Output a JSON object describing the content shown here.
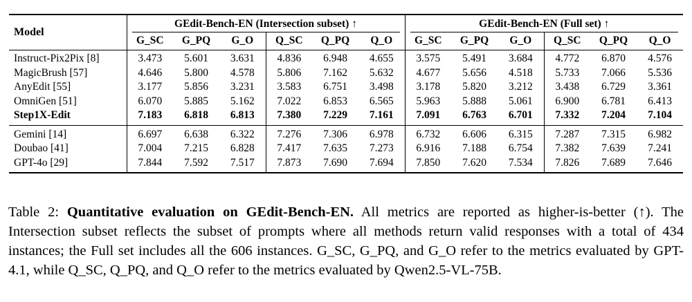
{
  "table": {
    "model_header": "Model",
    "col_groups": [
      {
        "label": "GEdit-Bench-EN (Intersection subset) ↑"
      },
      {
        "label": "GEdit-Bench-EN (Full set) ↑"
      }
    ],
    "metric_headers": [
      "G_SC",
      "G_PQ",
      "G_O",
      "Q_SC",
      "Q_PQ",
      "Q_O",
      "G_SC",
      "G_PQ",
      "G_O",
      "Q_SC",
      "Q_PQ",
      "Q_O"
    ],
    "groups": [
      {
        "rows": [
          {
            "model": "Instruct-Pix2Pix [8]",
            "bold": false,
            "values": [
              "3.473",
              "5.601",
              "3.631",
              "4.836",
              "6.948",
              "4.655",
              "3.575",
              "5.491",
              "3.684",
              "4.772",
              "6.870",
              "4.576"
            ]
          },
          {
            "model": "MagicBrush [57]",
            "bold": false,
            "values": [
              "4.646",
              "5.800",
              "4.578",
              "5.806",
              "7.162",
              "5.632",
              "4.677",
              "5.656",
              "4.518",
              "5.733",
              "7.066",
              "5.536"
            ]
          },
          {
            "model": "AnyEdit [55]",
            "bold": false,
            "values": [
              "3.177",
              "5.856",
              "3.231",
              "3.583",
              "6.751",
              "3.498",
              "3.178",
              "5.820",
              "3.212",
              "3.438",
              "6.729",
              "3.361"
            ]
          },
          {
            "model": "OmniGen [51]",
            "bold": false,
            "values": [
              "6.070",
              "5.885",
              "5.162",
              "7.022",
              "6.853",
              "6.565",
              "5.963",
              "5.888",
              "5.061",
              "6.900",
              "6.781",
              "6.413"
            ]
          },
          {
            "model": "Step1X-Edit",
            "bold": true,
            "values": [
              "7.183",
              "6.818",
              "6.813",
              "7.380",
              "7.229",
              "7.161",
              "7.091",
              "6.763",
              "6.701",
              "7.332",
              "7.204",
              "7.104"
            ]
          }
        ]
      },
      {
        "rows": [
          {
            "model": "Gemini [14]",
            "bold": false,
            "values": [
              "6.697",
              "6.638",
              "6.322",
              "7.276",
              "7.306",
              "6.978",
              "6.732",
              "6.606",
              "6.315",
              "7.287",
              "7.315",
              "6.982"
            ]
          },
          {
            "model": "Doubao [41]",
            "bold": false,
            "values": [
              "7.004",
              "7.215",
              "6.828",
              "7.417",
              "7.635",
              "7.273",
              "6.916",
              "7.188",
              "6.754",
              "7.382",
              "7.639",
              "7.241"
            ]
          },
          {
            "model": "GPT-4o [29]",
            "bold": false,
            "values": [
              "7.844",
              "7.592",
              "7.517",
              "7.873",
              "7.690",
              "7.694",
              "7.850",
              "7.620",
              "7.534",
              "7.826",
              "7.689",
              "7.646"
            ]
          }
        ]
      }
    ]
  },
  "caption": {
    "prefix": "Table 2: ",
    "bold": "Quantitative evaluation on GEdit-Bench-EN.",
    "rest": " All metrics are reported as higher-is-better (↑). The Intersection subset reflects the subset of prompts where all methods return valid responses with a total of 434 instances; the Full set includes all the 606 instances. G_SC, G_PQ, and G_O refer to the metrics evaluated by GPT-4.1, while Q_SC, Q_PQ, and Q_O refer to the metrics evaluated by Qwen2.5-VL-75B."
  }
}
